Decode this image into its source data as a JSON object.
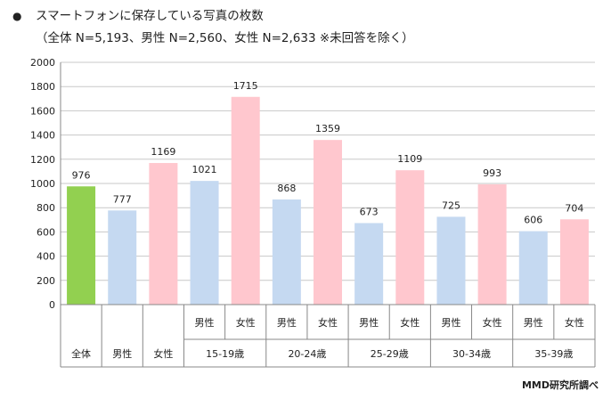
{
  "title": {
    "bullet": "●",
    "text": "スマートフォンに保存している写真の枚数",
    "subtitle": "（全体 N=5,193、男性 N=2,560、女性 N=2,633 ※未回答を除く）"
  },
  "source": "MMD研究所調べ",
  "chart_data": {
    "type": "bar",
    "ylim": [
      0,
      2000
    ],
    "yticks": [
      "0",
      "200",
      "400",
      "600",
      "800",
      "1000",
      "1200",
      "1400",
      "1600",
      "1800",
      "2000"
    ],
    "grid": true,
    "bars": [
      {
        "label": "全体",
        "group": "全体",
        "value": 976,
        "color": "#92d050"
      },
      {
        "label": "男性",
        "group": "男性",
        "value": 777,
        "color": "#c5d9f1"
      },
      {
        "label": "女性",
        "group": "女性",
        "value": 1169,
        "color": "#ffc7ce"
      },
      {
        "label": "男性",
        "group": "15-19歳",
        "value": 1021,
        "color": "#c5d9f1"
      },
      {
        "label": "女性",
        "group": "15-19歳",
        "value": 1715,
        "color": "#ffc7ce"
      },
      {
        "label": "男性",
        "group": "20-24歳",
        "value": 868,
        "color": "#c5d9f1"
      },
      {
        "label": "女性",
        "group": "20-24歳",
        "value": 1359,
        "color": "#ffc7ce"
      },
      {
        "label": "男性",
        "group": "25-29歳",
        "value": 673,
        "color": "#c5d9f1"
      },
      {
        "label": "女性",
        "group": "25-29歳",
        "value": 1109,
        "color": "#ffc7ce"
      },
      {
        "label": "男性",
        "group": "30-34歳",
        "value": 725,
        "color": "#c5d9f1"
      },
      {
        "label": "女性",
        "group": "30-34歳",
        "value": 993,
        "color": "#ffc7ce"
      },
      {
        "label": "男性",
        "group": "35-39歳",
        "value": 606,
        "color": "#c5d9f1"
      },
      {
        "label": "女性",
        "group": "35-39歳",
        "value": 704,
        "color": "#ffc7ce"
      }
    ],
    "groups": [
      {
        "name": "全体",
        "bars": 1
      },
      {
        "name": "男性",
        "bars": 1
      },
      {
        "name": "女性",
        "bars": 1
      },
      {
        "name": "15-19歳",
        "bars": 2
      },
      {
        "name": "20-24歳",
        "bars": 2
      },
      {
        "name": "25-29歳",
        "bars": 2
      },
      {
        "name": "30-34歳",
        "bars": 2
      },
      {
        "name": "35-39歳",
        "bars": 2
      }
    ]
  }
}
